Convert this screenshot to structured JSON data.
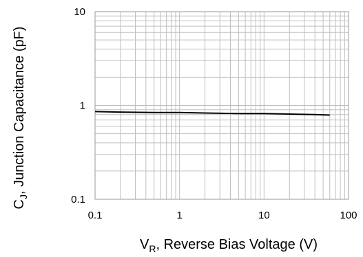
{
  "chart_data": {
    "type": "line",
    "xlabel": {
      "main": "V",
      "sub": "R",
      "rest": ", Reverse Bias Voltage (V)"
    },
    "ylabel": {
      "main": "C",
      "sub": "J",
      "rest": ", Junction Capacitance (pF)"
    },
    "x_scale": "log",
    "y_scale": "log",
    "xlim": [
      0.1,
      100
    ],
    "ylim": [
      0.1,
      10
    ],
    "x_ticks": [
      {
        "value": 0.1,
        "label": "0.1"
      },
      {
        "value": 1,
        "label": "1"
      },
      {
        "value": 10,
        "label": "10"
      },
      {
        "value": 100,
        "label": "100"
      }
    ],
    "y_ticks": [
      {
        "value": 0.1,
        "label": "0.1"
      },
      {
        "value": 1,
        "label": "1"
      },
      {
        "value": 10,
        "label": "10"
      }
    ],
    "grid": true,
    "line_color": "#000000",
    "grid_color": "#bfbfbf",
    "series": [
      {
        "x": [
          0.1,
          0.2,
          0.5,
          1,
          2,
          5,
          10,
          20,
          40,
          60
        ],
        "y": [
          0.86,
          0.85,
          0.84,
          0.84,
          0.83,
          0.82,
          0.82,
          0.81,
          0.8,
          0.79
        ]
      }
    ]
  }
}
